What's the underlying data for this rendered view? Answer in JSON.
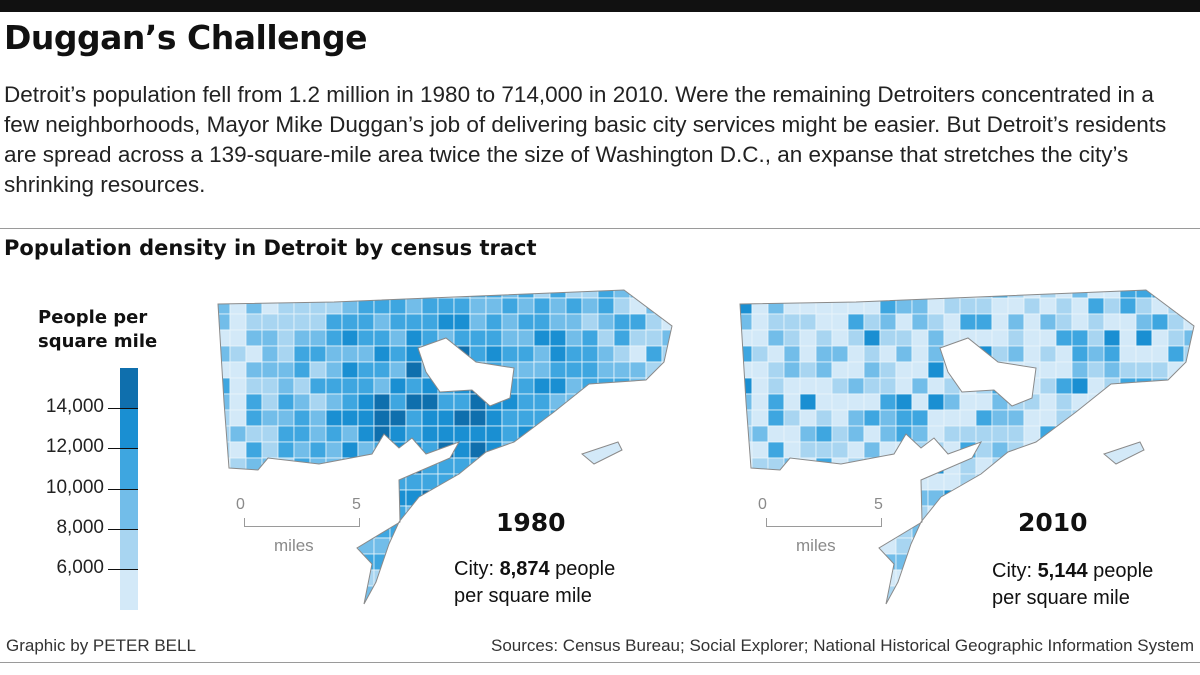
{
  "headline": "Duggan’s Challenge",
  "intro": "Detroit’s population fell from 1.2 million in 1980 to 714,000 in 2010. Were the remaining Detroiters concentrated in a few neighborhoods, Mayor Mike Duggan’s job of delivering basic city services might be easier. But Detroit’s residents are spread across a 139-square-mile area twice the size of Washington D.C., an expanse that stretches the city’s shrinking resources.",
  "subhead": "Population density in Detroit by census tract",
  "legend": {
    "title_line1": "People per",
    "title_line2": "square mile",
    "ticks": [
      "14,000",
      "12,000",
      "10,000",
      "8,000",
      "6,000"
    ],
    "colors": [
      "#0f6fad",
      "#1a8fd2",
      "#3ea6e0",
      "#72bde9",
      "#a8d5f1",
      "#d3e9f8"
    ]
  },
  "maps": [
    {
      "year": "1980",
      "city_prefix": "City: ",
      "city_value": "8,874",
      "city_suffix": " people",
      "city_line2": "per square mile",
      "scale": {
        "zero": "0",
        "five": "5",
        "unit": "miles"
      }
    },
    {
      "year": "2010",
      "city_prefix": "City: ",
      "city_value": "5,144",
      "city_suffix": " people",
      "city_line2": "per square mile",
      "scale": {
        "zero": "0",
        "five": "5",
        "unit": "miles"
      }
    }
  ],
  "credit": "Graphic by PETER BELL",
  "sources": "Sources: Census Bureau; Social Explorer; National Historical Geographic Information System"
}
